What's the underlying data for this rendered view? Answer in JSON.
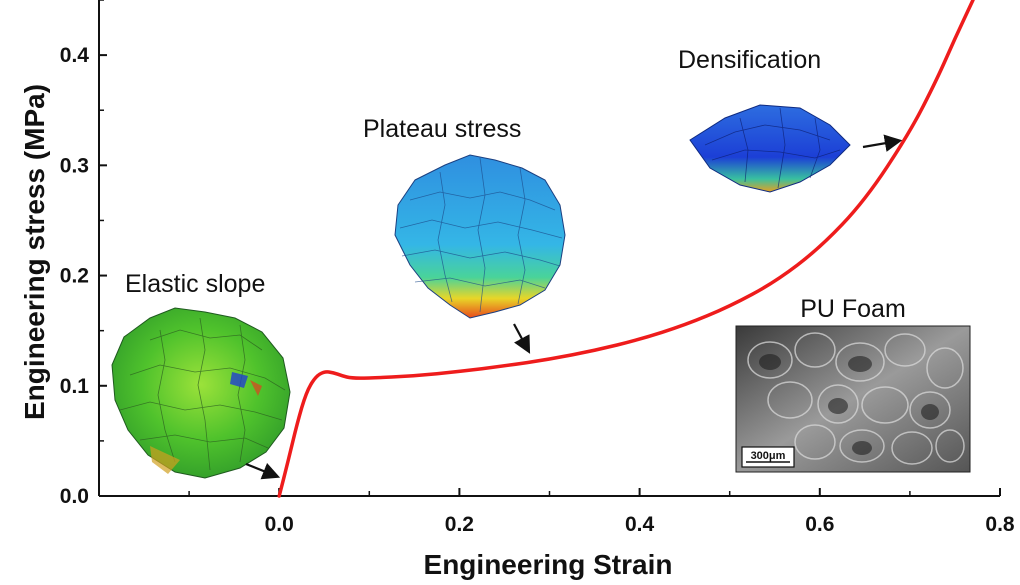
{
  "chart_data": {
    "type": "line",
    "xlabel": "Engineering Strain",
    "ylabel": "Engineering stress (MPa)",
    "xlim": [
      -0.2,
      0.8
    ],
    "ylim": [
      0.0,
      0.45
    ],
    "x_ticks": [
      "0.0",
      "0.2",
      "0.4",
      "0.6",
      "0.8"
    ],
    "y_ticks": [
      "0.0",
      "0.1",
      "0.2",
      "0.3",
      "0.4"
    ],
    "grid": false,
    "series": [
      {
        "color": "#ee1c1c",
        "x": [
          0.0,
          0.01,
          0.02,
          0.03,
          0.04,
          0.05,
          0.06,
          0.07,
          0.08,
          0.1,
          0.15,
          0.2,
          0.25,
          0.3,
          0.35,
          0.4,
          0.45,
          0.5,
          0.55,
          0.6,
          0.65,
          0.7,
          0.73,
          0.75,
          0.77
        ],
        "y": [
          0.0,
          0.032,
          0.066,
          0.094,
          0.108,
          0.113,
          0.112,
          0.109,
          0.107,
          0.107,
          0.109,
          0.113,
          0.118,
          0.124,
          0.132,
          0.142,
          0.155,
          0.172,
          0.194,
          0.225,
          0.268,
          0.33,
          0.378,
          0.415,
          0.455
        ]
      }
    ],
    "annotations": {
      "elastic": "Elastic slope",
      "plateau": "Plateau stress",
      "densification": "Densification",
      "foam": "PU Foam",
      "scale_bar": "300μm"
    }
  },
  "colors": {
    "curve": "#ee1c1c",
    "axis": "#111111"
  }
}
